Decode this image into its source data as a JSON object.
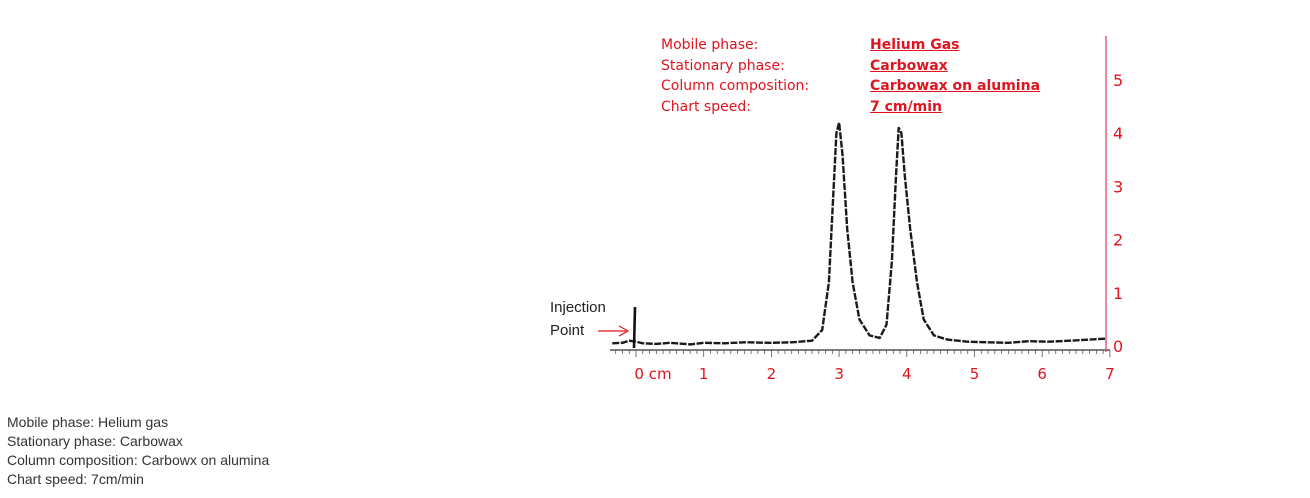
{
  "info_panel": {
    "labels": [
      "Mobile phase:",
      "Stationary phase:",
      "Column composition:",
      "Chart speed:"
    ],
    "values": [
      "Helium Gas",
      "Carbowax",
      "Carbowax on alumina",
      "7 cm/min"
    ]
  },
  "caption": {
    "lines": [
      "Mobile phase: Helium gas",
      "Stationary phase: Carbowax",
      "Column composition: Carbowx on alumina",
      "Chart speed: 7cm/min"
    ]
  },
  "annotation": {
    "line1": "Injection",
    "line2": "Point"
  },
  "colors": {
    "accent": "#e0141e",
    "trace": "#1a1a1a",
    "axis_line": "#e8456a"
  },
  "chart_data": {
    "type": "line",
    "title": "",
    "xlabel": "",
    "ylabel": "",
    "x_ticks": [
      "0 cm",
      "1",
      "2",
      "3",
      "4",
      "5",
      "6",
      "7"
    ],
    "y_ticks": [
      "0",
      "1",
      "2",
      "3",
      "4",
      "5"
    ],
    "xlim": [
      -0.35,
      7
    ],
    "ylim": [
      0,
      5.8
    ],
    "grid": false,
    "injection_point_x": 0,
    "series": [
      {
        "x": [
          -0.35,
          -0.2,
          -0.1,
          0,
          0.1,
          0.3,
          0.5,
          0.8,
          1.0,
          1.3,
          1.6,
          2.0,
          2.3,
          2.6,
          2.75,
          2.85,
          2.92,
          2.96,
          3.0,
          3.05,
          3.12,
          3.2,
          3.3,
          3.45,
          3.6,
          3.7,
          3.78,
          3.84,
          3.88,
          3.92,
          3.97,
          4.05,
          4.15,
          4.25,
          4.4,
          4.6,
          4.9,
          5.2,
          5.5,
          5.8,
          6.1,
          6.4,
          6.7,
          6.95
        ],
        "y": [
          0.05,
          0.06,
          0.1,
          0.08,
          0.05,
          0.04,
          0.06,
          0.03,
          0.06,
          0.05,
          0.07,
          0.06,
          0.07,
          0.1,
          0.3,
          1.2,
          3.0,
          4.0,
          4.2,
          3.6,
          2.2,
          1.2,
          0.5,
          0.2,
          0.15,
          0.4,
          1.6,
          3.2,
          4.1,
          4.0,
          3.2,
          2.2,
          1.2,
          0.5,
          0.2,
          0.12,
          0.08,
          0.07,
          0.06,
          0.09,
          0.08,
          0.1,
          0.12,
          0.14
        ]
      }
    ]
  }
}
